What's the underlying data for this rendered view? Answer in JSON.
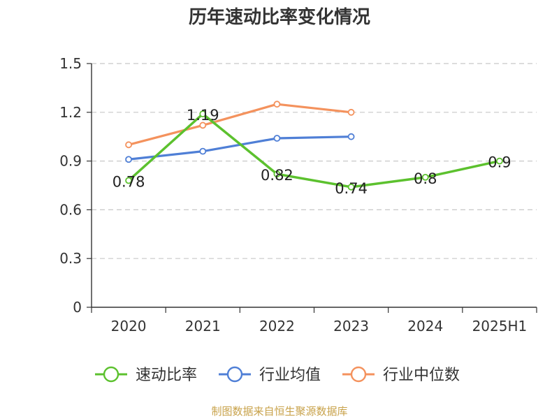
{
  "chart_data": {
    "type": "line",
    "title": "历年速动比率变化情况",
    "categories": [
      "2020",
      "2021",
      "2022",
      "2023",
      "2024",
      "2025H1"
    ],
    "ylim": [
      0,
      1.5
    ],
    "yticks": [
      "0",
      "0.3",
      "0.6",
      "0.9",
      "1.2",
      "1.5"
    ],
    "grid": true,
    "legend_position": "bottom",
    "series": [
      {
        "name": "速动比率",
        "color": "#5cc12e",
        "values": [
          0.78,
          1.19,
          0.82,
          0.74,
          0.8,
          0.9
        ],
        "labels": [
          "0.78",
          "1.19",
          "0.82",
          "0.74",
          "0.8",
          "0.9"
        ]
      },
      {
        "name": "行业均值",
        "color": "#4f7fd6",
        "values": [
          0.91,
          0.96,
          1.04,
          1.05,
          null,
          null
        ]
      },
      {
        "name": "行业中位数",
        "color": "#f4925d",
        "values": [
          1.0,
          1.12,
          1.25,
          1.2,
          null,
          null
        ]
      }
    ],
    "source": "制图数据来自恒生聚源数据库"
  }
}
